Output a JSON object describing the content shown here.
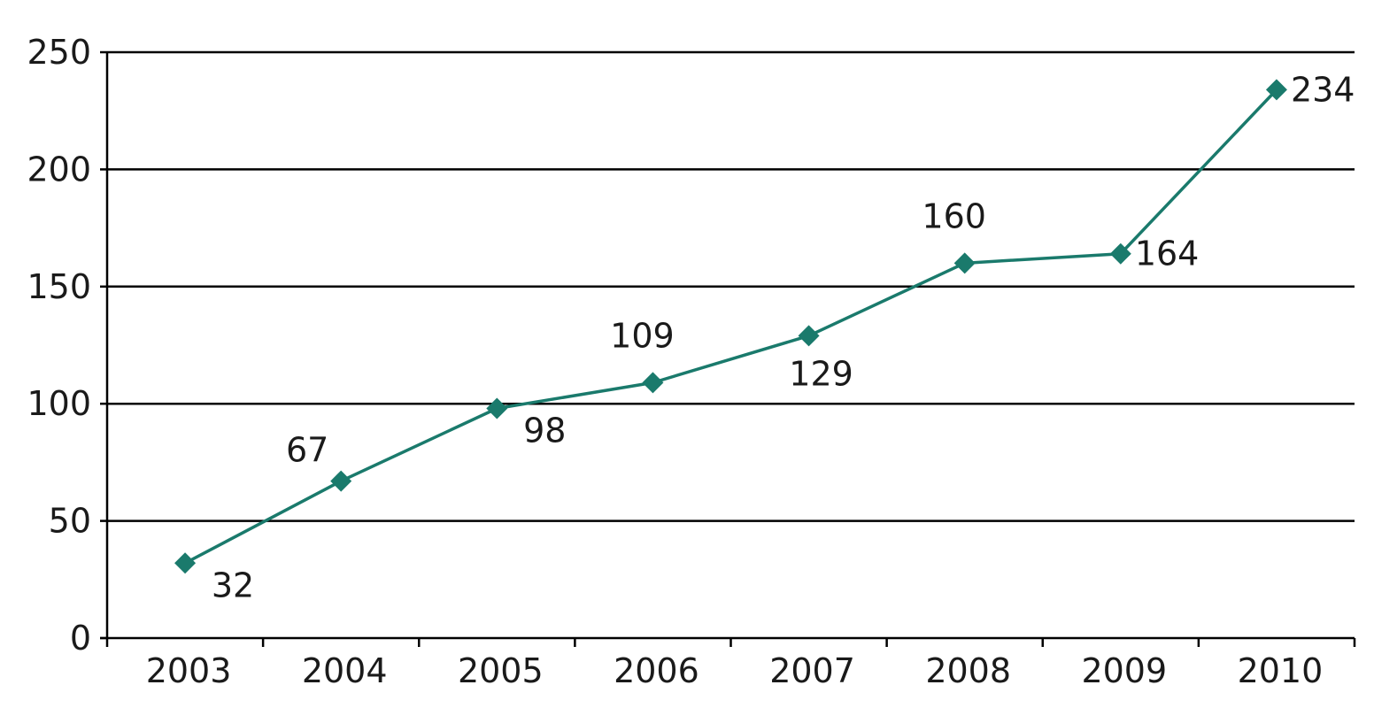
{
  "chart_data": {
    "type": "line",
    "title": "",
    "xlabel": "",
    "ylabel": "",
    "categories": [
      "2003",
      "2004",
      "2005",
      "2006",
      "2007",
      "2008",
      "2009",
      "2010"
    ],
    "series": [
      {
        "values": [
          32,
          67,
          98,
          109,
          129,
          160,
          164,
          234
        ],
        "color": "#1a7a6c",
        "marker": "diamond"
      }
    ],
    "ylim": [
      0,
      250
    ],
    "yticks": [
      "0",
      "50",
      "100",
      "150",
      "200",
      "250"
    ],
    "grid": "horizontal",
    "grid_color": "#000000",
    "data_labels": [
      {
        "text": "32",
        "placement": "below-right"
      },
      {
        "text": "67",
        "placement": "above-left"
      },
      {
        "text": "98",
        "placement": "below-right"
      },
      {
        "text": "109",
        "placement": "above"
      },
      {
        "text": "129",
        "placement": "below"
      },
      {
        "text": "160",
        "placement": "above"
      },
      {
        "text": "164",
        "placement": "right"
      },
      {
        "text": "234",
        "placement": "right"
      }
    ],
    "legend": "none"
  }
}
